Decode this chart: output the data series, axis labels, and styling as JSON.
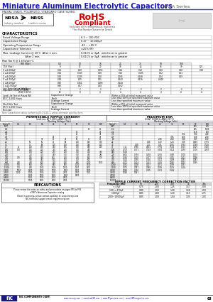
{
  "title": "Miniature Aluminum Electrolytic Capacitors",
  "series": "NRSA Series",
  "subtitle": "RADIAL LEADS, POLARIZED, STANDARD CASE SIZING",
  "rohs_title": "RoHS",
  "rohs_sub": "Compliant",
  "rohs_note": "Includes all homogeneous materials",
  "part_note": "*See Part Number System for Details",
  "char_title": "CHARACTERISTICS",
  "bg_color": "#ffffff",
  "header_blue": "#1a1aaa",
  "rohs_red": "#cc0000",
  "footer_url": "www.niccorp.com  |  www.lowESR.com  |  www.RFpassives.com  |  www.SMTmagnetics.com",
  "page_num": "63"
}
